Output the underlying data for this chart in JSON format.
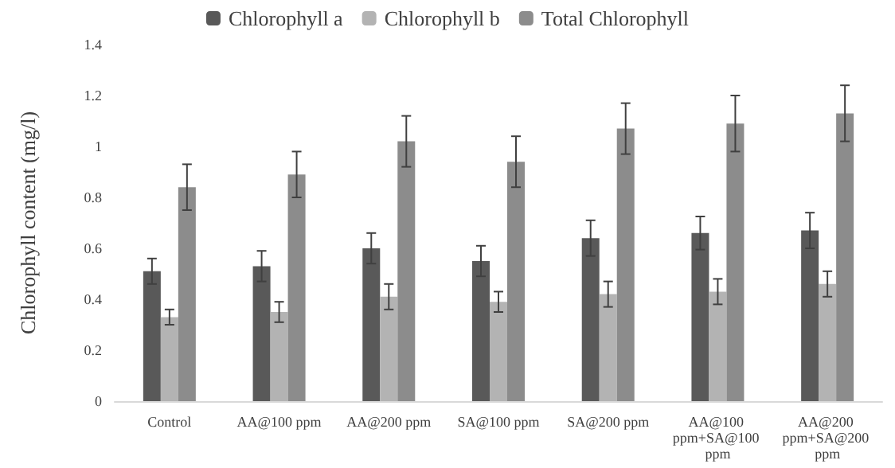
{
  "chart_data": {
    "type": "bar",
    "ylabel": "Chlorophyll content (mg/l)",
    "categories": [
      "Control",
      "AA@100 ppm",
      "AA@200 ppm",
      "SA@100 ppm",
      "SA@200 ppm",
      "AA@100 ppm+SA@100 ppm",
      "AA@200 ppm+SA@200 ppm"
    ],
    "series": [
      {
        "name": "Chlorophyll a",
        "color": "#595959",
        "values": [
          0.51,
          0.53,
          0.6,
          0.55,
          0.64,
          0.66,
          0.67
        ],
        "errors": [
          0.05,
          0.06,
          0.06,
          0.06,
          0.07,
          0.065,
          0.07
        ]
      },
      {
        "name": "Chlorophyll b",
        "color": "#b3b3b3",
        "values": [
          0.33,
          0.35,
          0.41,
          0.39,
          0.42,
          0.43,
          0.46
        ],
        "errors": [
          0.03,
          0.04,
          0.05,
          0.04,
          0.05,
          0.05,
          0.05
        ]
      },
      {
        "name": "Total Chlorophyll",
        "color": "#8c8c8c",
        "values": [
          0.84,
          0.89,
          1.02,
          0.94,
          1.07,
          1.09,
          1.13
        ],
        "errors": [
          0.09,
          0.09,
          0.1,
          0.1,
          0.1,
          0.11,
          0.11
        ]
      }
    ],
    "ylim": [
      0,
      1.4
    ],
    "yticks": [
      0,
      0.2,
      0.4,
      0.6,
      0.8,
      1,
      1.2,
      1.4
    ],
    "grid": false,
    "legend": "top"
  }
}
